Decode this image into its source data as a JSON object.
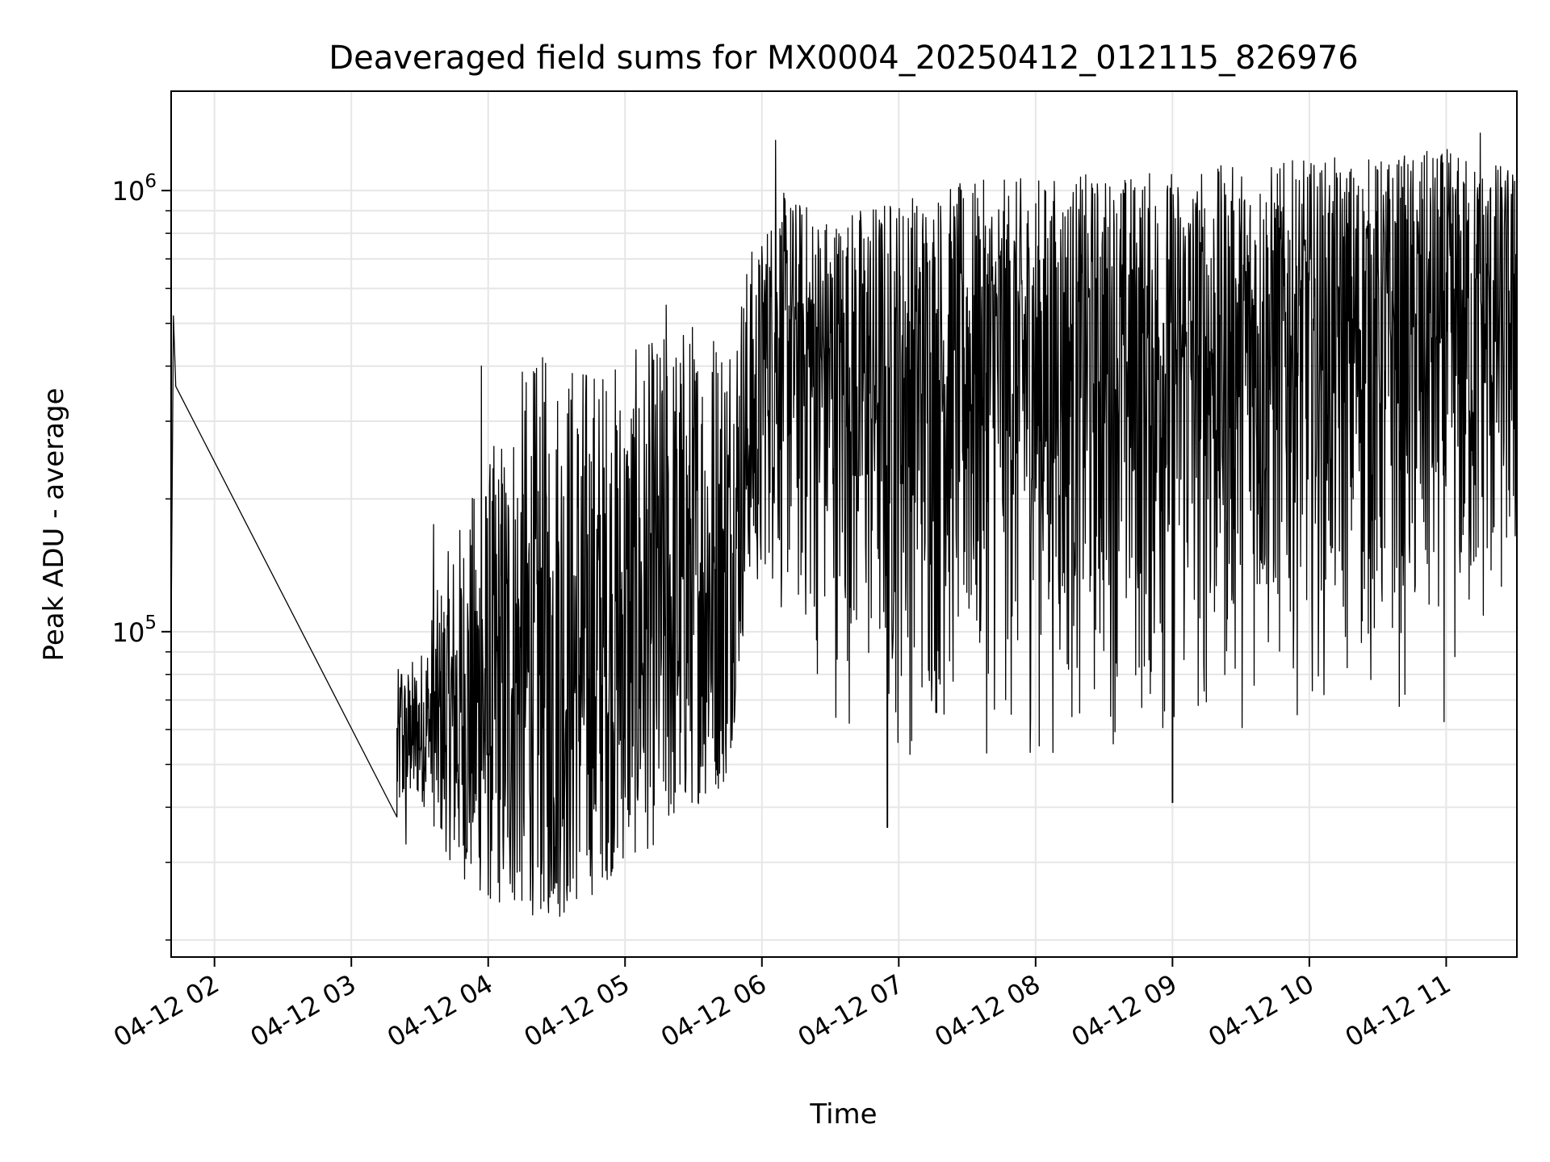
{
  "chart_data": {
    "type": "line",
    "title": "Deaveraged field sums for MX0004_20250412_012115_826976",
    "xlabel": "Time",
    "ylabel": "Peak ADU - average",
    "x_scale": "time",
    "y_scale": "log",
    "xlim": [
      "2025-04-12 01:41",
      "2025-04-12 11:31"
    ],
    "ylim": [
      18300,
      1680000
    ],
    "grid": true,
    "line_color": "#000000",
    "x_ticks": [
      {
        "value": "2025-04-12 02:00",
        "label": "04-12 02"
      },
      {
        "value": "2025-04-12 03:00",
        "label": "04-12 03"
      },
      {
        "value": "2025-04-12 04:00",
        "label": "04-12 04"
      },
      {
        "value": "2025-04-12 05:00",
        "label": "04-12 05"
      },
      {
        "value": "2025-04-12 06:00",
        "label": "04-12 06"
      },
      {
        "value": "2025-04-12 07:00",
        "label": "04-12 07"
      },
      {
        "value": "2025-04-12 08:00",
        "label": "04-12 08"
      },
      {
        "value": "2025-04-12 09:00",
        "label": "04-12 09"
      },
      {
        "value": "2025-04-12 10:00",
        "label": "04-12 10"
      },
      {
        "value": "2025-04-12 11:00",
        "label": "04-12 11"
      }
    ],
    "y_major_ticks": [
      {
        "value": 100000,
        "base": "10",
        "exp": "5"
      },
      {
        "value": 1000000,
        "base": "10",
        "exp": "6"
      }
    ],
    "y_minor_ticks": [
      20000,
      30000,
      40000,
      50000,
      60000,
      70000,
      80000,
      90000,
      200000,
      300000,
      400000,
      500000,
      600000,
      700000,
      800000,
      900000
    ],
    "envelope": [
      {
        "t": "2025-04-12 01:41",
        "lo": 80000,
        "hi": 550000
      },
      {
        "t": "2025-04-12 01:43",
        "lo": 360000,
        "hi": 360000
      },
      {
        "t": "2025-04-12 03:20",
        "lo": 38000,
        "hi": 82000
      },
      {
        "t": "2025-04-12 03:30",
        "lo": 42000,
        "hi": 90000
      },
      {
        "t": "2025-04-12 03:45",
        "lo": 29000,
        "hi": 170000
      },
      {
        "t": "2025-04-12 04:00",
        "lo": 24000,
        "hi": 250000
      },
      {
        "t": "2025-04-12 04:15",
        "lo": 23000,
        "hi": 400000
      },
      {
        "t": "2025-04-12 04:30",
        "lo": 22000,
        "hi": 450000
      },
      {
        "t": "2025-04-12 04:45",
        "lo": 25000,
        "hi": 430000
      },
      {
        "t": "2025-04-12 05:00",
        "lo": 30000,
        "hi": 420000
      },
      {
        "t": "2025-04-12 05:15",
        "lo": 33000,
        "hi": 480000
      },
      {
        "t": "2025-04-12 05:30",
        "lo": 40000,
        "hi": 540000
      },
      {
        "t": "2025-04-12 05:45",
        "lo": 45000,
        "hi": 560000
      },
      {
        "t": "2025-04-12 05:55",
        "lo": 140000,
        "hi": 750000
      },
      {
        "t": "2025-04-12 06:10",
        "lo": 85000,
        "hi": 1000000
      },
      {
        "t": "2025-04-12 06:30",
        "lo": 60000,
        "hi": 900000
      },
      {
        "t": "2025-04-12 07:00",
        "lo": 45000,
        "hi": 1000000
      },
      {
        "t": "2025-04-12 07:30",
        "lo": 50000,
        "hi": 1050000
      },
      {
        "t": "2025-04-12 08:00",
        "lo": 45000,
        "hi": 1080000
      },
      {
        "t": "2025-04-12 08:30",
        "lo": 52000,
        "hi": 1100000
      },
      {
        "t": "2025-04-12 09:00",
        "lo": 45000,
        "hi": 1130000
      },
      {
        "t": "2025-04-12 09:30",
        "lo": 55000,
        "hi": 1150000
      },
      {
        "t": "2025-04-12 10:00",
        "lo": 65000,
        "hi": 1180000
      },
      {
        "t": "2025-04-12 10:30",
        "lo": 60000,
        "hi": 1200000
      },
      {
        "t": "2025-04-12 11:00",
        "lo": 55000,
        "hi": 1250000
      },
      {
        "t": "2025-04-12 11:30",
        "lo": 90000,
        "hi": 1150000
      }
    ],
    "points": [
      {
        "t": "2025-04-12 01:41",
        "y": 100000
      },
      {
        "t": "2025-04-12 01:42",
        "y": 520000
      },
      {
        "t": "2025-04-12 01:43",
        "y": 360000
      },
      {
        "t": "2025-04-12 03:20",
        "y": 38000
      },
      {
        "t": "2025-04-12 03:22",
        "y": 80000
      },
      {
        "t": "2025-04-12 03:24",
        "y": 33000
      },
      {
        "t": "2025-04-12 03:26",
        "y": 68000
      },
      {
        "t": "2025-04-12 03:34",
        "y": 52000
      },
      {
        "t": "2025-04-12 03:36",
        "y": 175000
      },
      {
        "t": "2025-04-12 03:57",
        "y": 400000
      },
      {
        "t": "2025-04-12 04:27",
        "y": 25000
      },
      {
        "t": "2025-04-12 05:18",
        "y": 550000
      },
      {
        "t": "2025-04-12 06:06",
        "y": 1300000
      },
      {
        "t": "2025-04-12 06:55",
        "y": 36000
      },
      {
        "t": "2025-04-12 09:00",
        "y": 41000
      },
      {
        "t": "2025-04-12 11:15",
        "y": 1350000
      },
      {
        "t": "2025-04-12 11:30",
        "y": 1050000
      }
    ]
  }
}
